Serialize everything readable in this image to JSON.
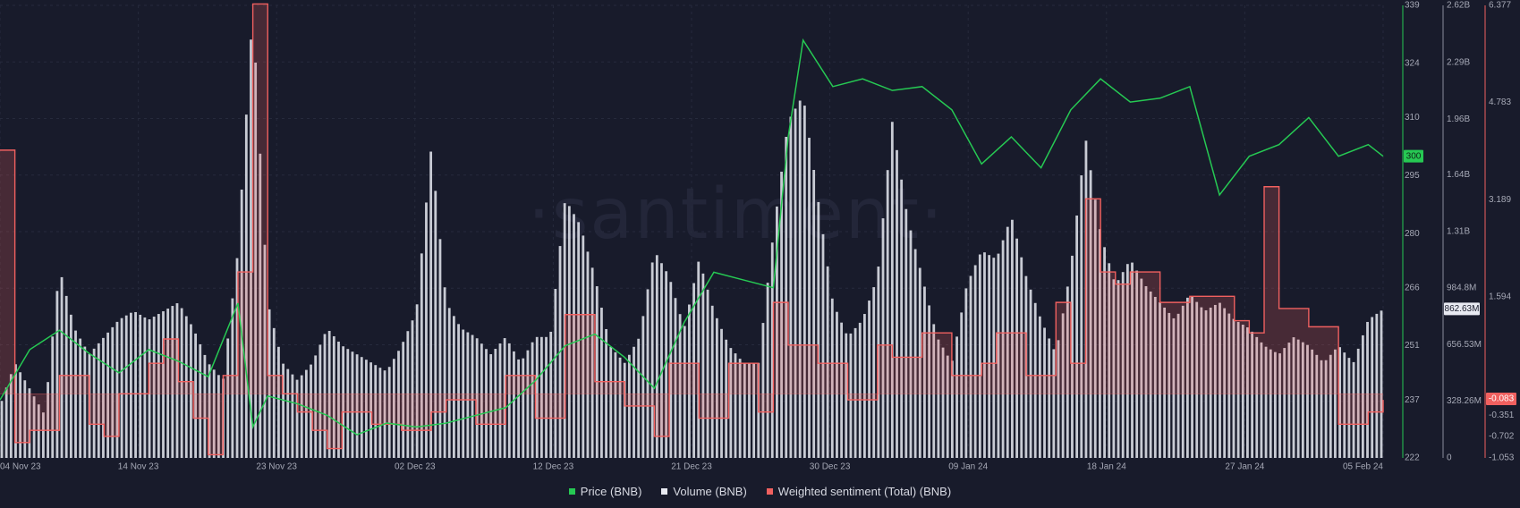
{
  "watermark": "·santiment·",
  "legend": [
    {
      "label": "Price (BNB)",
      "color": "#26c953"
    },
    {
      "label": "Volume (BNB)",
      "color": "#e8eaf2"
    },
    {
      "label": "Weighted sentiment (Total) (BNB)",
      "color": "#f0605f"
    }
  ],
  "chart_data": {
    "type": "line",
    "title": "",
    "x_ticks": [
      "04 Nov 23",
      "14 Nov 23",
      "23 Nov 23",
      "02 Dec 23",
      "12 Dec 23",
      "21 Dec 23",
      "30 Dec 23",
      "09 Jan 24",
      "18 Jan 24",
      "27 Jan 24",
      "05 Feb 24"
    ],
    "x_range": [
      "2023-11-04",
      "2024-02-05"
    ],
    "grid": true,
    "legend_position": "bottom-center",
    "axes": {
      "price": {
        "ticks": [
          "222",
          "237",
          "251",
          "266",
          "280",
          "295",
          "310",
          "324",
          "339"
        ],
        "range": [
          222,
          339
        ],
        "color": "#26c953",
        "current_label": "300"
      },
      "volume": {
        "ticks": [
          "0",
          "328.26M",
          "656.53M",
          "984.8M",
          "1.31B",
          "1.64B",
          "1.96B",
          "2.29B",
          "2.62B"
        ],
        "range": [
          0,
          2.62
        ],
        "unit": "B",
        "current_label": "862.63M"
      },
      "sentiment": {
        "ticks": [
          "-1.053",
          "-0.702",
          "-0.351",
          "1.594",
          "3.189",
          "4.783",
          "6.377"
        ],
        "range": [
          -1.053,
          6.377
        ],
        "color": "#f0605f",
        "current_label": "-0.083"
      }
    },
    "series": [
      {
        "name": "Price (BNB)",
        "axis": "price",
        "color": "#26c953",
        "x": [
          "2023-11-04",
          "2023-11-06",
          "2023-11-08",
          "2023-11-10",
          "2023-11-12",
          "2023-11-14",
          "2023-11-16",
          "2023-11-18",
          "2023-11-20",
          "2023-11-21",
          "2023-11-22",
          "2023-11-24",
          "2023-11-26",
          "2023-11-28",
          "2023-11-30",
          "2023-12-02",
          "2023-12-04",
          "2023-12-06",
          "2023-12-08",
          "2023-12-10",
          "2023-12-12",
          "2023-12-14",
          "2023-12-16",
          "2023-12-18",
          "2023-12-20",
          "2023-12-22",
          "2023-12-24",
          "2023-12-26",
          "2023-12-27",
          "2023-12-28",
          "2023-12-30",
          "2024-01-01",
          "2024-01-03",
          "2024-01-05",
          "2024-01-07",
          "2024-01-09",
          "2024-01-11",
          "2024-01-13",
          "2024-01-15",
          "2024-01-17",
          "2024-01-19",
          "2024-01-21",
          "2024-01-23",
          "2024-01-25",
          "2024-01-27",
          "2024-01-29",
          "2024-01-31",
          "2024-02-02",
          "2024-02-04",
          "2024-02-05"
        ],
        "values": [
          237,
          250,
          255,
          249,
          244,
          250,
          247,
          243,
          262,
          230,
          238,
          236,
          233,
          228,
          231,
          230,
          231,
          233,
          235,
          242,
          251,
          254,
          248,
          240,
          257,
          270,
          268,
          266,
          305,
          330,
          318,
          320,
          317,
          318,
          312,
          298,
          305,
          297,
          312,
          320,
          314,
          315,
          318,
          290,
          300,
          303,
          310,
          300,
          303,
          300
        ]
      },
      {
        "name": "Volume (BNB)",
        "axis": "volume",
        "color": "#e8eaf2",
        "x": [
          "2023-11-04",
          "2023-11-05",
          "2023-11-06",
          "2023-11-07",
          "2023-11-08",
          "2023-11-09",
          "2023-11-10",
          "2023-11-11",
          "2023-11-12",
          "2023-11-13",
          "2023-11-14",
          "2023-11-15",
          "2023-11-16",
          "2023-11-17",
          "2023-11-18",
          "2023-11-19",
          "2023-11-20",
          "2023-11-21",
          "2023-11-22",
          "2023-11-23",
          "2023-11-24",
          "2023-11-25",
          "2023-11-26",
          "2023-11-27",
          "2023-11-28",
          "2023-11-29",
          "2023-11-30",
          "2023-12-01",
          "2023-12-02",
          "2023-12-03",
          "2023-12-04",
          "2023-12-05",
          "2023-12-06",
          "2023-12-07",
          "2023-12-08",
          "2023-12-09",
          "2023-12-10",
          "2023-12-11",
          "2023-12-12",
          "2023-12-13",
          "2023-12-14",
          "2023-12-15",
          "2023-12-16",
          "2023-12-17",
          "2023-12-18",
          "2023-12-19",
          "2023-12-20",
          "2023-12-21",
          "2023-12-22",
          "2023-12-23",
          "2023-12-24",
          "2023-12-25",
          "2023-12-26",
          "2023-12-27",
          "2023-12-28",
          "2023-12-29",
          "2023-12-30",
          "2023-12-31",
          "2024-01-01",
          "2024-01-02",
          "2024-01-03",
          "2024-01-04",
          "2024-01-05",
          "2024-01-06",
          "2024-01-07",
          "2024-01-08",
          "2024-01-09",
          "2024-01-10",
          "2024-01-11",
          "2024-01-12",
          "2024-01-13",
          "2024-01-14",
          "2024-01-15",
          "2024-01-16",
          "2024-01-17",
          "2024-01-18",
          "2024-01-19",
          "2024-01-20",
          "2024-01-21",
          "2024-01-22",
          "2024-01-23",
          "2024-01-24",
          "2024-01-25",
          "2024-01-26",
          "2024-01-27",
          "2024-01-28",
          "2024-01-29",
          "2024-01-30",
          "2024-01-31",
          "2024-02-01",
          "2024-02-02",
          "2024-02-03",
          "2024-02-04",
          "2024-02-05"
        ],
        "values": [
          0.3,
          0.55,
          0.4,
          0.25,
          1.1,
          0.75,
          0.6,
          0.7,
          0.8,
          0.85,
          0.8,
          0.85,
          0.9,
          0.75,
          0.55,
          0.45,
          1.2,
          2.6,
          0.9,
          0.55,
          0.45,
          0.55,
          0.75,
          0.65,
          0.6,
          0.55,
          0.5,
          0.65,
          0.85,
          1.8,
          0.9,
          0.75,
          0.7,
          0.6,
          0.7,
          0.55,
          0.7,
          0.7,
          1.5,
          1.35,
          1.05,
          0.65,
          0.55,
          0.7,
          1.2,
          1.05,
          0.75,
          1.15,
          0.85,
          0.65,
          0.55,
          0.55,
          1.3,
          1.95,
          2.1,
          1.5,
          0.9,
          0.7,
          0.8,
          1.05,
          1.95,
          1.4,
          1.05,
          0.7,
          0.55,
          1.0,
          1.2,
          1.15,
          1.4,
          1.05,
          0.8,
          0.6,
          1.1,
          1.85,
          1.3,
          1.0,
          1.15,
          1.0,
          0.9,
          0.8,
          0.95,
          0.85,
          0.9,
          0.8,
          0.75,
          0.65,
          0.6,
          0.7,
          0.65,
          0.55,
          0.65,
          0.55,
          0.8,
          0.86
        ]
      },
      {
        "name": "Weighted sentiment (Total) (BNB)",
        "axis": "sentiment",
        "color": "#f0605f",
        "x": [
          "2023-11-04",
          "2023-11-05",
          "2023-11-06",
          "2023-11-08",
          "2023-11-10",
          "2023-11-11",
          "2023-11-12",
          "2023-11-14",
          "2023-11-15",
          "2023-11-16",
          "2023-11-17",
          "2023-11-18",
          "2023-11-19",
          "2023-11-20",
          "2023-11-21",
          "2023-11-22",
          "2023-11-23",
          "2023-11-24",
          "2023-11-25",
          "2023-11-26",
          "2023-11-27",
          "2023-11-29",
          "2023-12-01",
          "2023-12-03",
          "2023-12-04",
          "2023-12-06",
          "2023-12-08",
          "2023-12-10",
          "2023-12-12",
          "2023-12-14",
          "2023-12-16",
          "2023-12-18",
          "2023-12-19",
          "2023-12-21",
          "2023-12-23",
          "2023-12-25",
          "2023-12-26",
          "2023-12-27",
          "2023-12-29",
          "2023-12-31",
          "2024-01-02",
          "2024-01-03",
          "2024-01-05",
          "2024-01-07",
          "2024-01-09",
          "2024-01-10",
          "2024-01-12",
          "2024-01-14",
          "2024-01-15",
          "2024-01-16",
          "2024-01-17",
          "2024-01-18",
          "2024-01-19",
          "2024-01-21",
          "2024-01-23",
          "2024-01-25",
          "2024-01-26",
          "2024-01-27",
          "2024-01-28",
          "2024-01-29",
          "2024-01-31",
          "2024-02-02",
          "2024-02-04",
          "2024-02-05"
        ],
        "values": [
          4.0,
          -0.8,
          -0.6,
          0.3,
          -0.5,
          -0.7,
          0.0,
          0.5,
          0.9,
          0.2,
          -0.4,
          -1.0,
          0.3,
          2.0,
          6.4,
          0.3,
          0.0,
          -0.3,
          -0.6,
          -0.9,
          -0.3,
          -0.5,
          -0.6,
          -0.3,
          -0.1,
          -0.5,
          0.3,
          -0.4,
          1.3,
          0.2,
          -0.2,
          -0.7,
          0.5,
          -0.4,
          0.5,
          -0.3,
          1.5,
          0.8,
          0.5,
          -0.1,
          0.8,
          0.6,
          1.0,
          0.3,
          0.5,
          1.0,
          0.3,
          1.5,
          0.5,
          3.2,
          2.0,
          1.8,
          2.0,
          1.5,
          1.6,
          1.6,
          1.2,
          1.0,
          3.4,
          1.4,
          1.1,
          -0.5,
          -0.3,
          -0.1
        ]
      }
    ]
  }
}
